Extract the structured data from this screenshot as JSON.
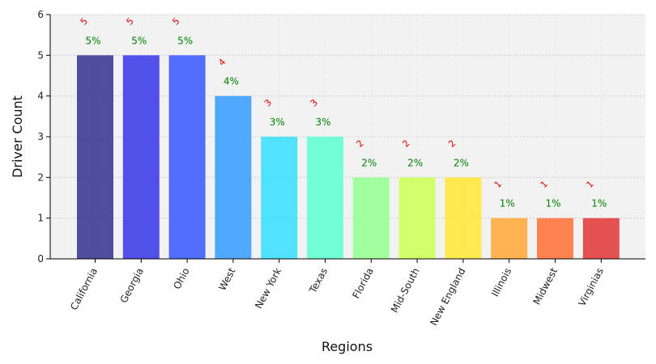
{
  "chart_data": {
    "type": "bar",
    "xlabel": "Regions",
    "ylabel": "Driver Count",
    "ylim": [
      0,
      6
    ],
    "yticks": [
      0,
      1,
      2,
      3,
      4,
      5,
      6
    ],
    "grid": true,
    "categories": [
      "California",
      "Georgia",
      "Ohio",
      "West",
      "New York",
      "Texas",
      "Florida",
      "Mid-South",
      "New England",
      "Illinois",
      "Midwest",
      "Virginias"
    ],
    "values": [
      5,
      5,
      5,
      4,
      3,
      3,
      2,
      2,
      2,
      1,
      1,
      1
    ],
    "percent_labels": [
      "5%",
      "5%",
      "5%",
      "4%",
      "3%",
      "3%",
      "2%",
      "2%",
      "2%",
      "1%",
      "1%",
      "1%"
    ],
    "colors": [
      "#464499",
      "#4848e8",
      "#4866ff",
      "#48a4ff",
      "#48e0ff",
      "#6cffd4",
      "#9cff98",
      "#d0ff64",
      "#ffe848",
      "#ffb048",
      "#ff7c48",
      "#e24848"
    ],
    "plot_background": "#f2f2f2",
    "count_label_color": "#e00000",
    "percent_label_color": "#008000"
  }
}
